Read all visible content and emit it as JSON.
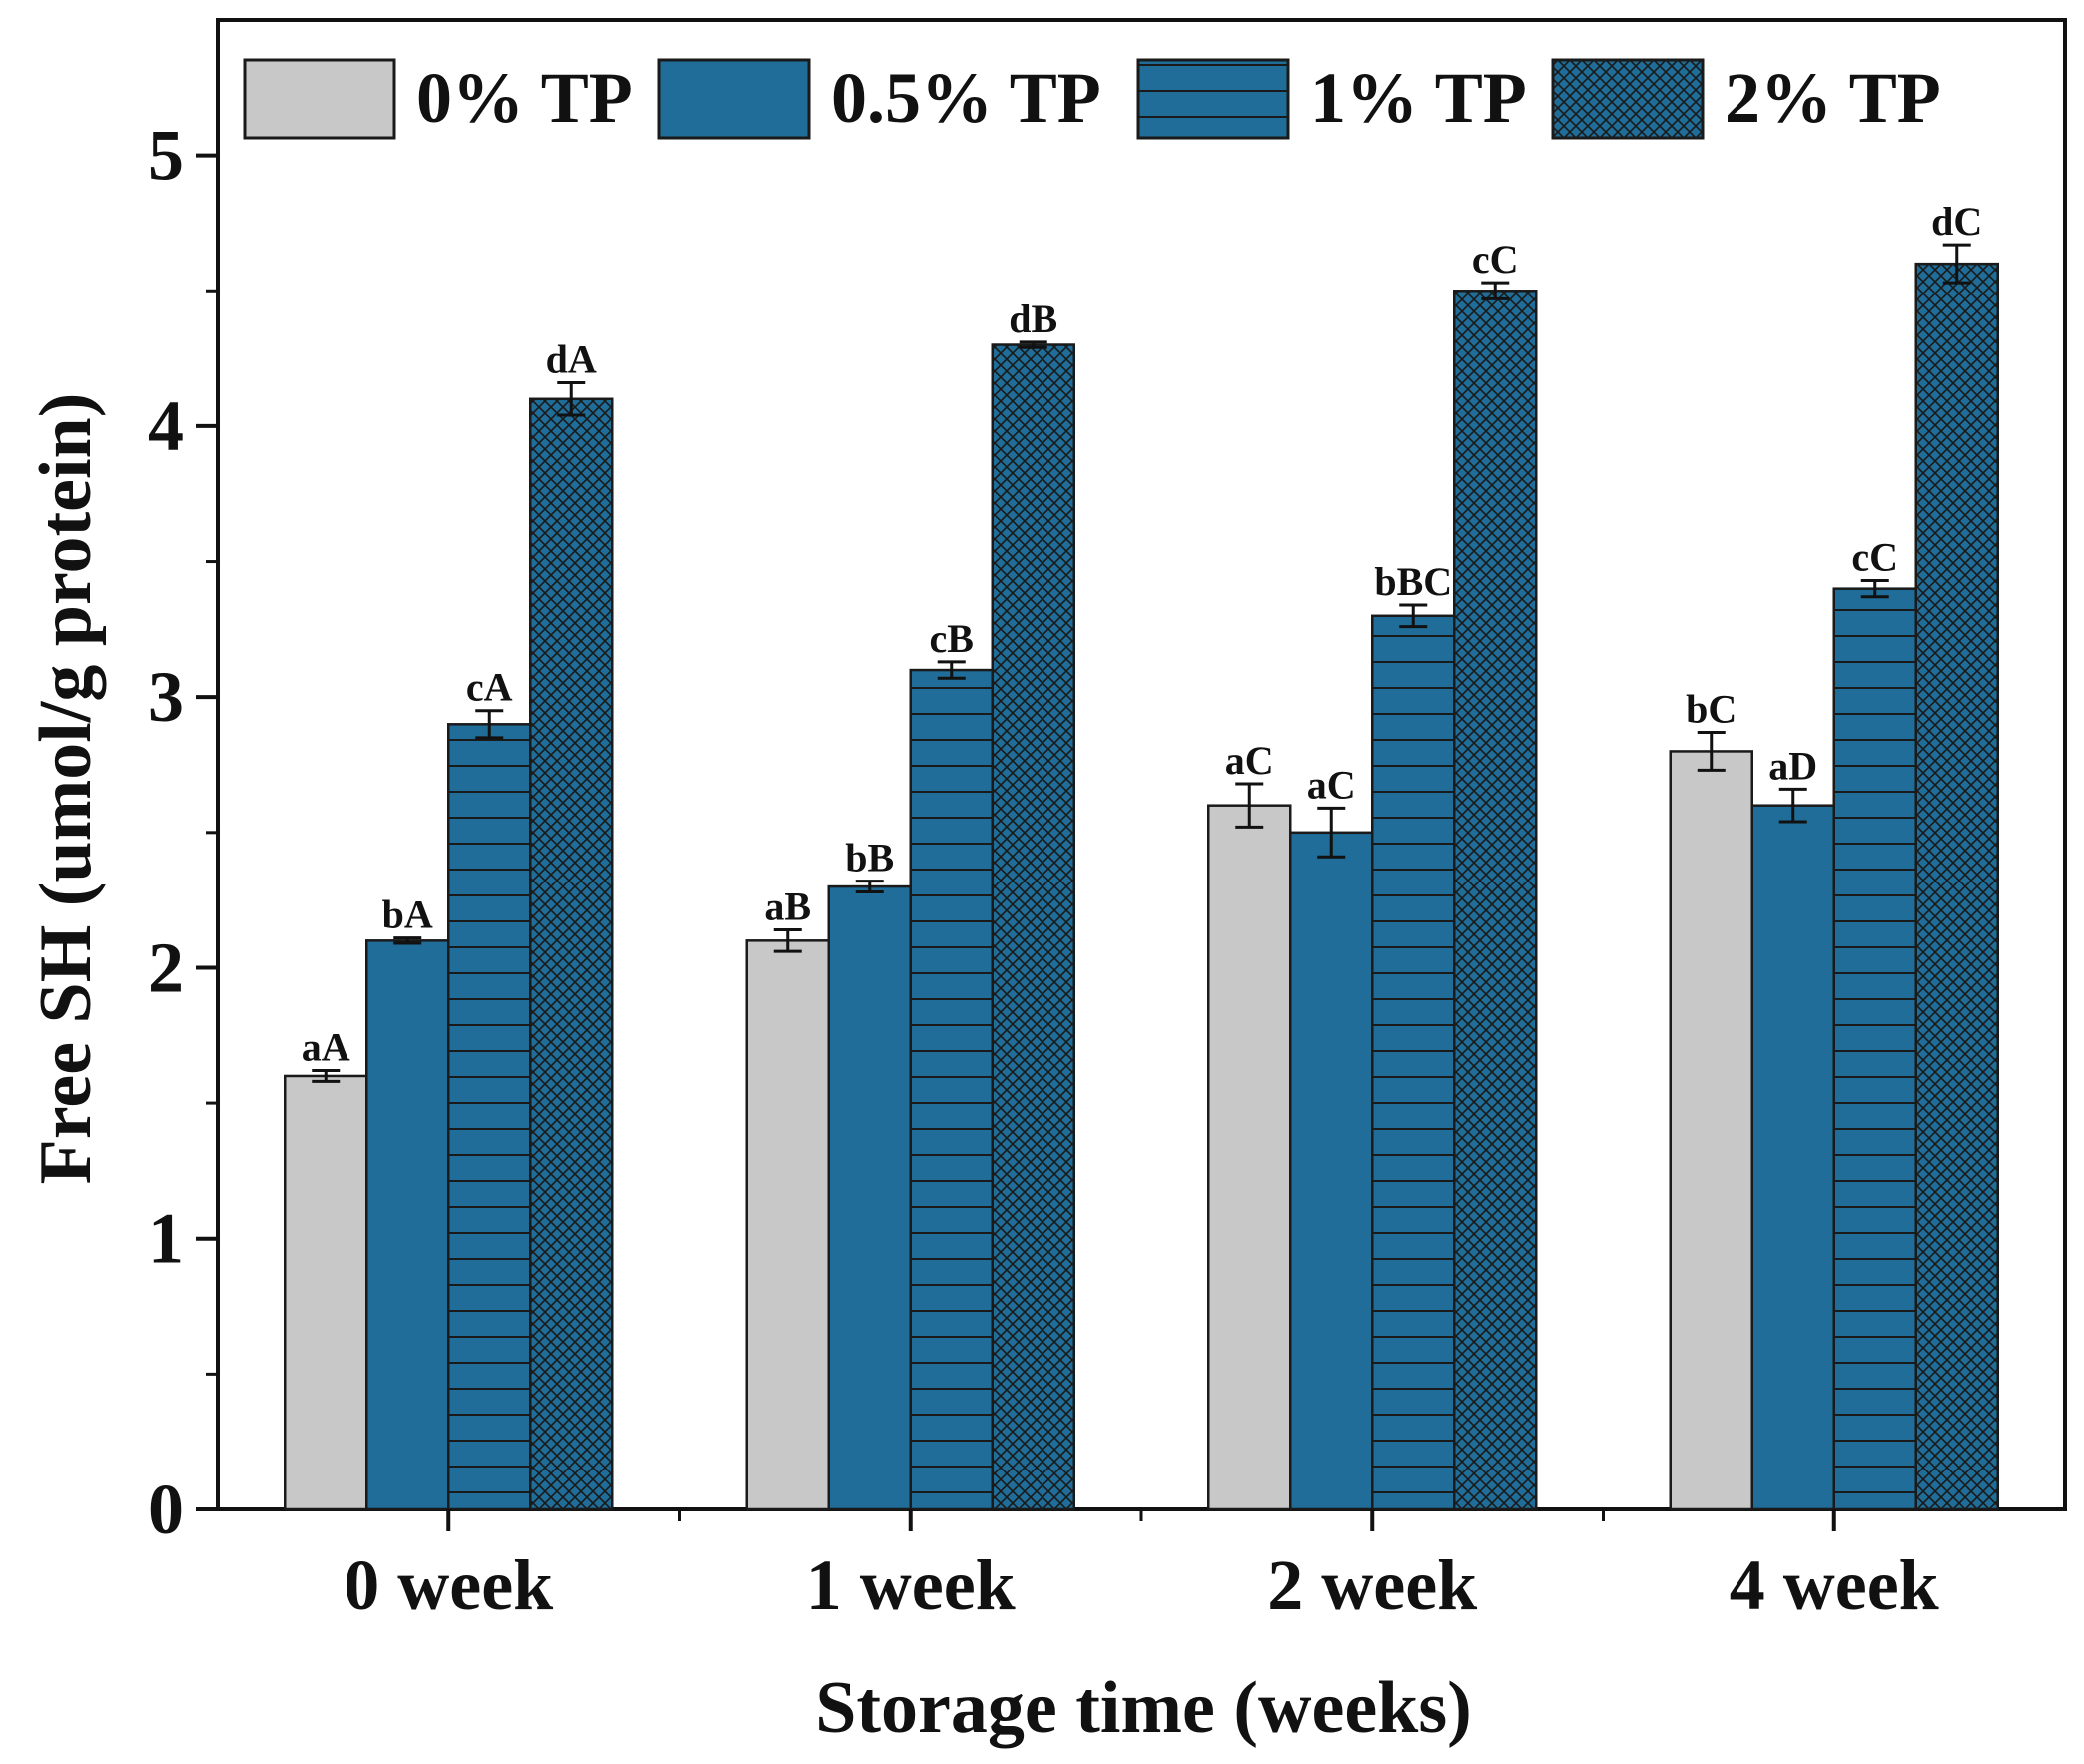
{
  "chart_data": {
    "type": "bar",
    "title": "",
    "xlabel": "Storage time (weeks)",
    "ylabel": "Free SH (umol/g protein)",
    "ylim": [
      0,
      5.5
    ],
    "yticks": [
      0,
      1,
      2,
      3,
      4,
      5
    ],
    "ytick_labels": [
      "0",
      "1",
      "2",
      "3",
      "4",
      "5"
    ],
    "categories": [
      "0 week",
      "1 week",
      "2 week",
      "4 week"
    ],
    "legend_position": "top",
    "series": [
      {
        "name": "0% TP",
        "color": "#c8c8c8",
        "pattern": "solid",
        "values": [
          1.6,
          2.1,
          2.6,
          2.8
        ],
        "errors": [
          0.02,
          0.04,
          0.08,
          0.07
        ],
        "labels": [
          "aA",
          "aB",
          "aC",
          "bC"
        ]
      },
      {
        "name": "0.5% TP",
        "color": "#1f6d98",
        "pattern": "solid",
        "values": [
          2.1,
          2.3,
          2.5,
          2.6
        ],
        "errors": [
          0.01,
          0.02,
          0.09,
          0.06
        ],
        "labels": [
          "bA",
          "bB",
          "aC",
          "aD"
        ]
      },
      {
        "name": "1% TP",
        "color": "#1f6d98",
        "pattern": "horizontal",
        "values": [
          2.9,
          3.1,
          3.3,
          3.4
        ],
        "errors": [
          0.05,
          0.03,
          0.04,
          0.03
        ],
        "labels": [
          "cA",
          "cB",
          "bBC",
          "cC"
        ]
      },
      {
        "name": "2% TP",
        "color": "#1f6d98",
        "pattern": "crosshatch",
        "values": [
          4.1,
          4.3,
          4.5,
          4.6
        ],
        "errors": [
          0.06,
          0.01,
          0.03,
          0.07
        ],
        "labels": [
          "dA",
          "dB",
          "cC",
          "dC"
        ]
      }
    ]
  }
}
